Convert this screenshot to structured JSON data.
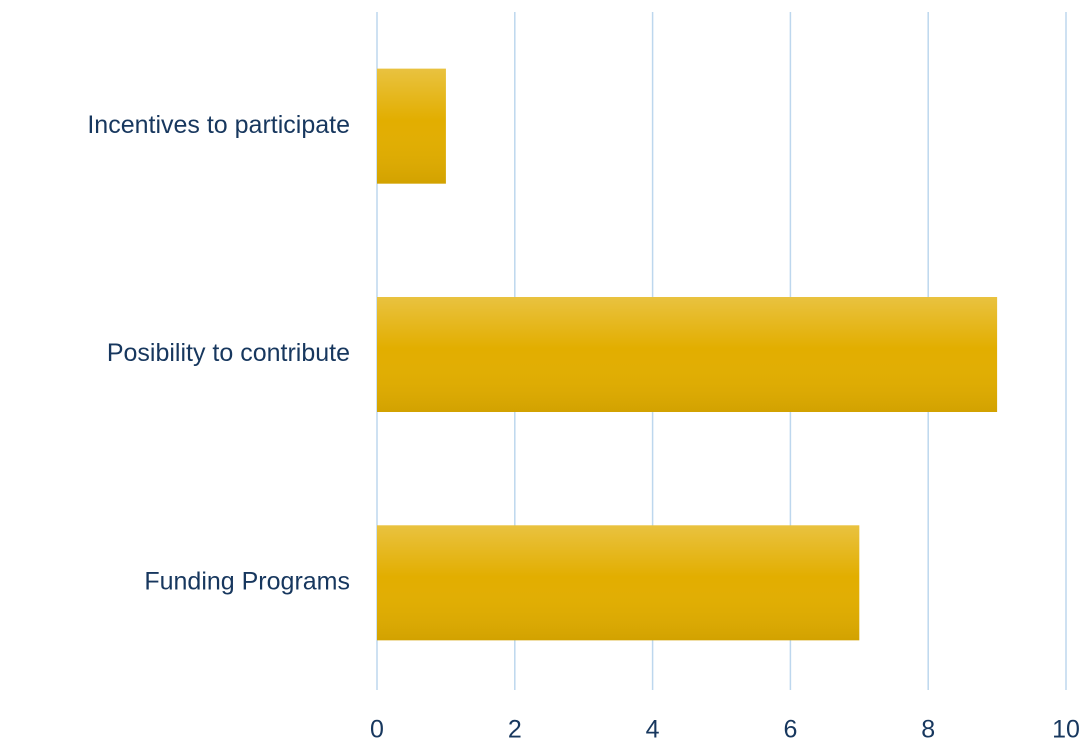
{
  "chart_data": {
    "type": "bar",
    "orientation": "horizontal",
    "categories": [
      "Incentives to participate",
      "Posibility to contribute",
      "Funding Programs"
    ],
    "values": [
      1,
      9,
      7
    ],
    "color": "#e2ae00",
    "xlim": [
      0,
      10
    ],
    "xticks": [
      0,
      2,
      4,
      6,
      8,
      10
    ],
    "grid": true
  }
}
